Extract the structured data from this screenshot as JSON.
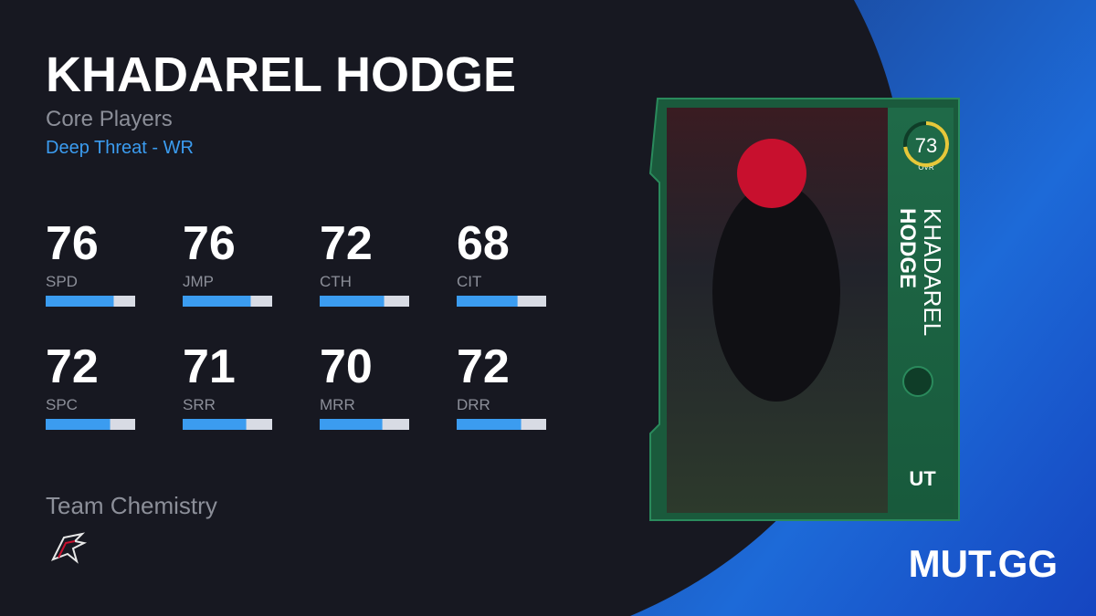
{
  "player": {
    "name": "KHADAREL HODGE",
    "program": "Core Players",
    "archetype": "Deep Threat - WR"
  },
  "stats": [
    {
      "value": 76,
      "label": "SPD"
    },
    {
      "value": 76,
      "label": "JMP"
    },
    {
      "value": 72,
      "label": "CTH"
    },
    {
      "value": 68,
      "label": "CIT"
    },
    {
      "value": 72,
      "label": "SPC"
    },
    {
      "value": 71,
      "label": "SRR"
    },
    {
      "value": 70,
      "label": "MRR"
    },
    {
      "value": 72,
      "label": "DRR"
    }
  ],
  "chemistry_title": "Team Chemistry",
  "card": {
    "ovr": 73,
    "ovr_label": "OVR",
    "first_name": "KHADAREL",
    "last_name": "HODGE",
    "tier": "UT"
  },
  "brand": "MUT.GG"
}
